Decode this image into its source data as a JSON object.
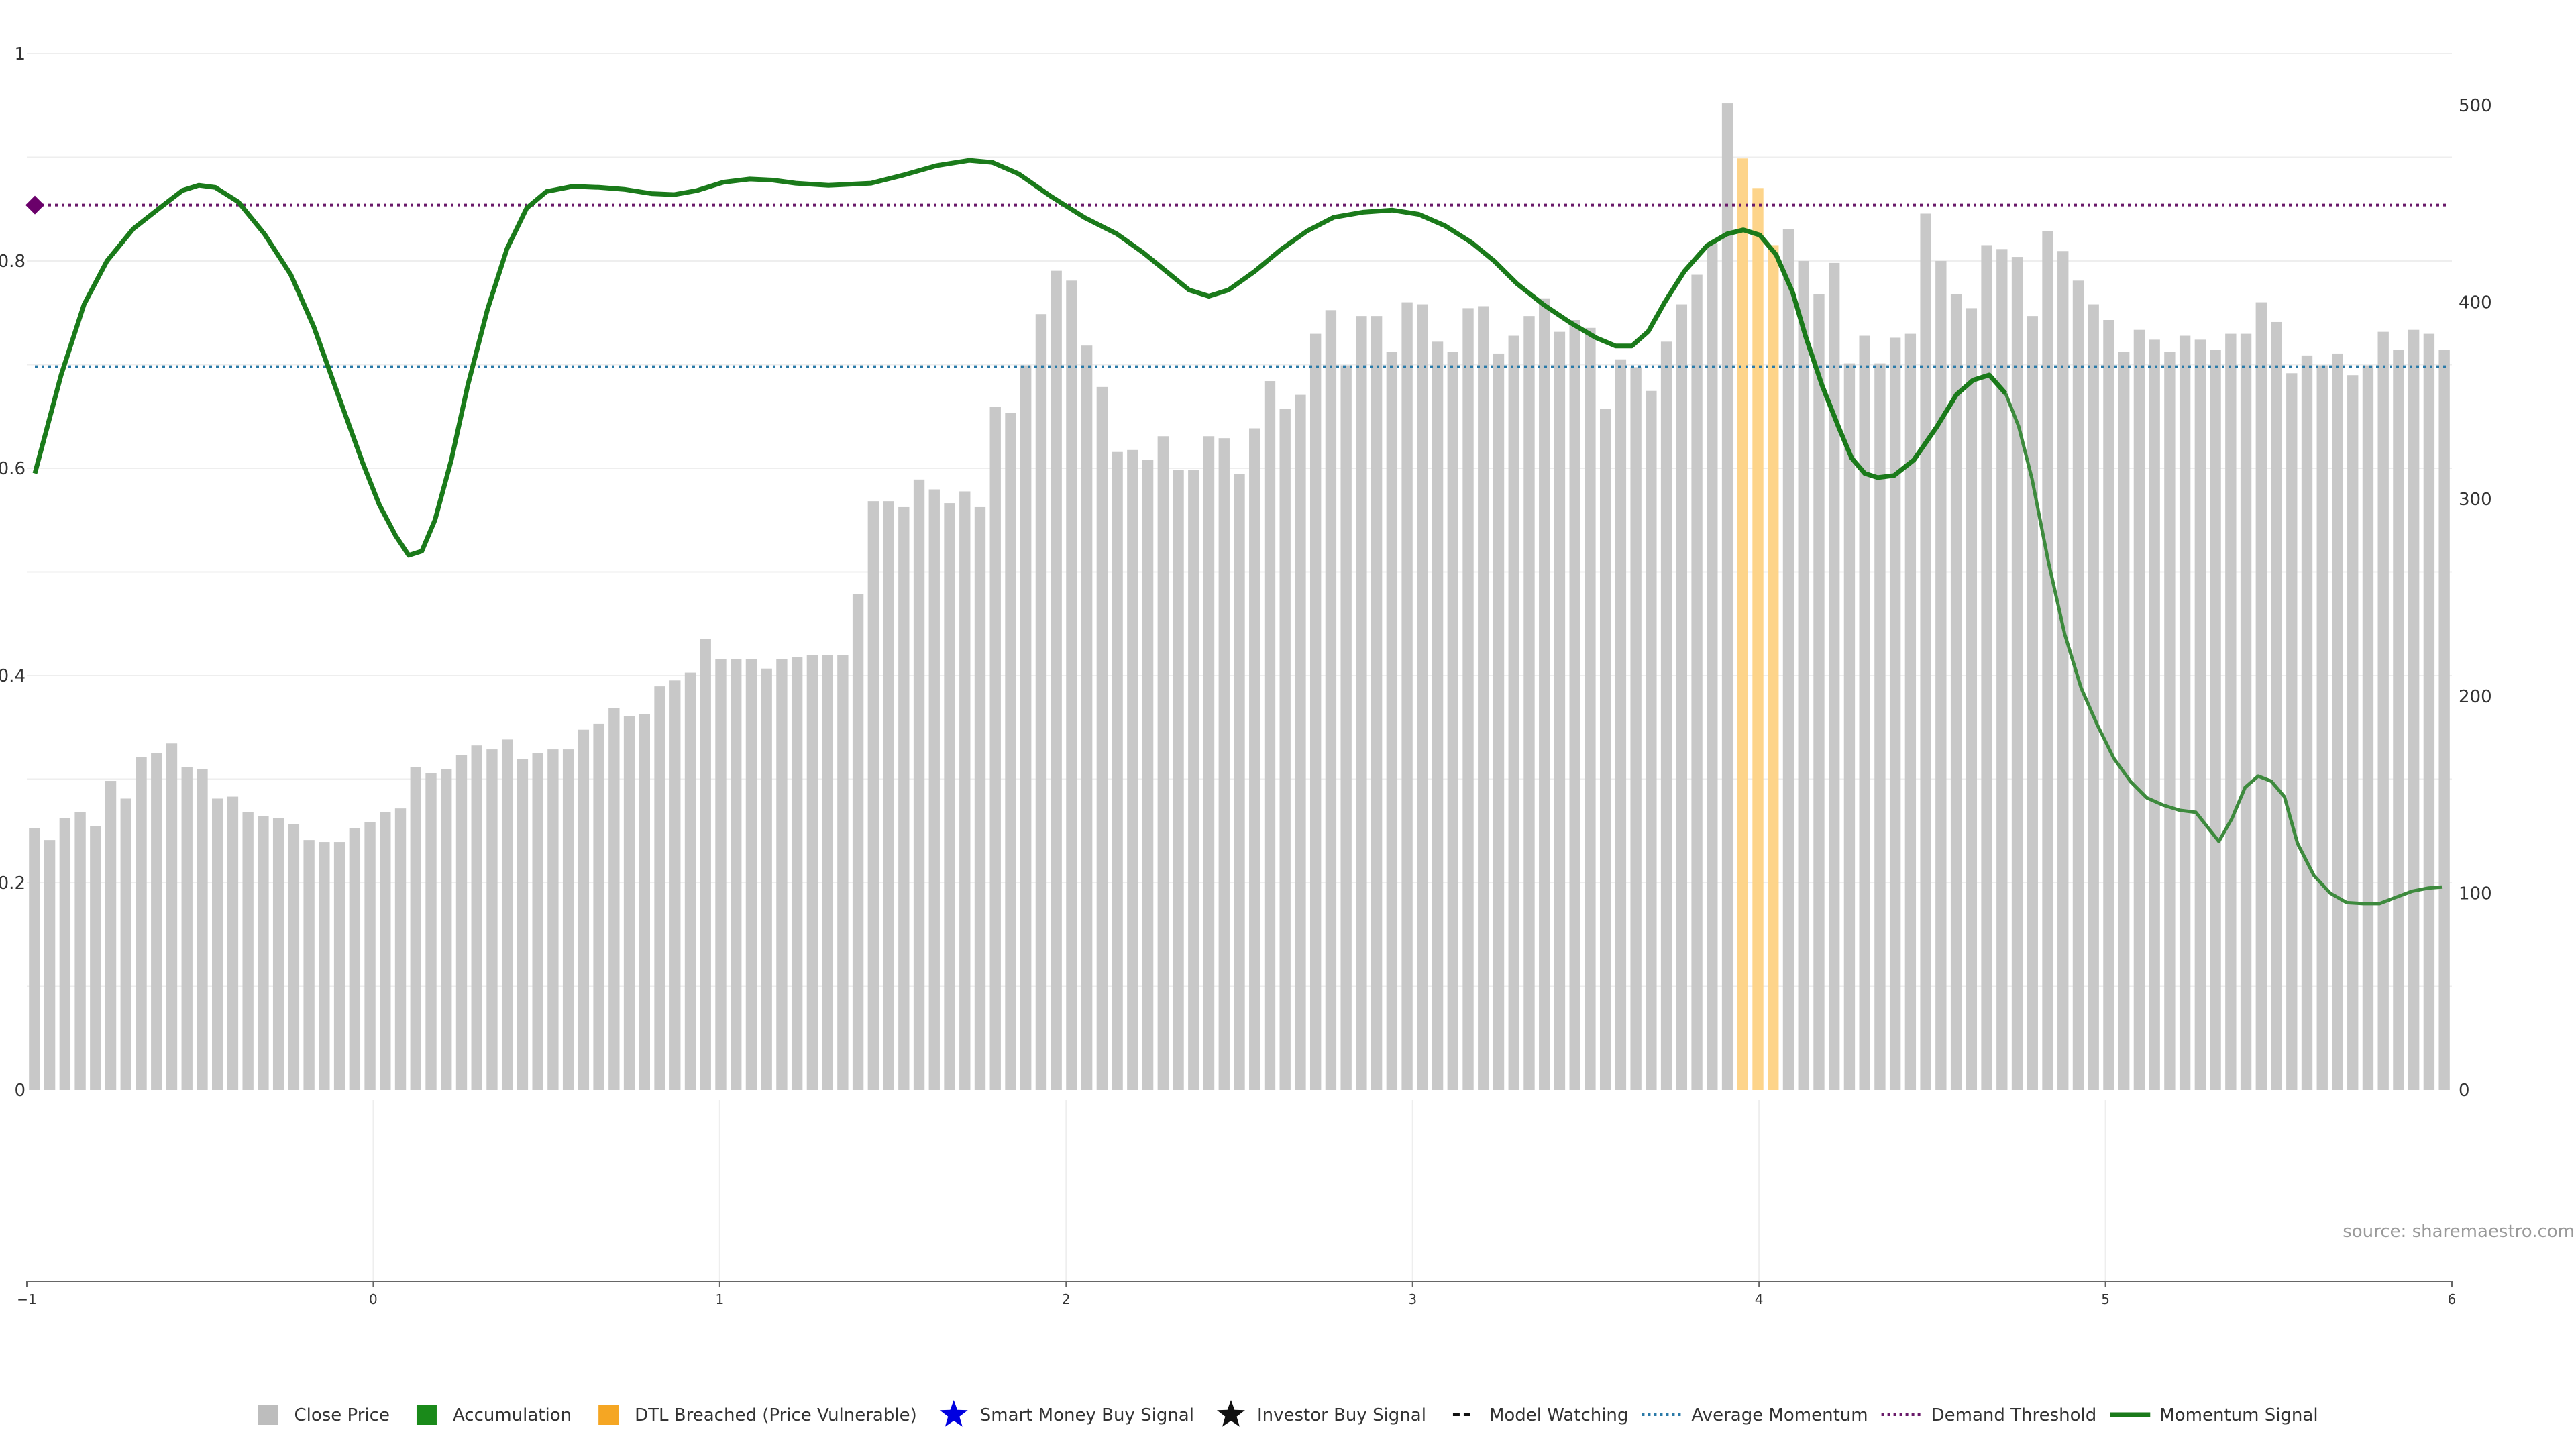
{
  "chart_data": {
    "type": "bar",
    "left_axis": {
      "ticks": [
        "0",
        "0.2",
        "0.4",
        "0.6",
        "0.8",
        "1"
      ],
      "ylim": [
        0,
        1
      ]
    },
    "right_axis": {
      "ticks": [
        "0",
        "100",
        "200",
        "300",
        "400",
        "500"
      ],
      "ylim": [
        0,
        500
      ]
    },
    "x_axis": {
      "ticks": [
        "−1",
        "0",
        "1",
        "2",
        "3",
        "4",
        "5",
        "6"
      ],
      "xlim": [
        -1,
        6
      ]
    },
    "grid": "horizontal",
    "source": "source: sharemaestro.com",
    "legend_position": "bottom-center",
    "legend": [
      {
        "key": "close",
        "label": "Close Price",
        "color": "#bdbdbd",
        "symbol": "square"
      },
      {
        "key": "accum",
        "label": "Accumulation",
        "color": "#1a8a1a",
        "symbol": "square"
      },
      {
        "key": "dtl",
        "label": "DTL Breached (Price Vulnerable)",
        "color": "#f5a623",
        "symbol": "square"
      },
      {
        "key": "smart",
        "label": "Smart Money Buy Signal",
        "color": "#0000e0",
        "symbol": "star"
      },
      {
        "key": "investor",
        "label": "Investor Buy Signal",
        "color": "#111111",
        "symbol": "star"
      },
      {
        "key": "watch",
        "label": "Model Watching",
        "color": "#111111",
        "symbol": "dash"
      },
      {
        "key": "avg",
        "label": "Average Momentum",
        "color": "#2a7aa8",
        "symbol": "dot"
      },
      {
        "key": "demand",
        "label": "Demand Threshold",
        "color": "#6a1a6a",
        "symbol": "dot"
      },
      {
        "key": "momentum",
        "label": "Momentum Signal",
        "color": "#1a7a1a",
        "symbol": "line"
      }
    ],
    "close_price": [
      133,
      127,
      138,
      141,
      134,
      157,
      148,
      169,
      171,
      176,
      164,
      163,
      148,
      149,
      141,
      139,
      138,
      135,
      127,
      126,
      126,
      133,
      136,
      141,
      143,
      164,
      161,
      163,
      170,
      175,
      173,
      178,
      168,
      171,
      173,
      173,
      183,
      186,
      194,
      190,
      191,
      205,
      208,
      212,
      229,
      219,
      219,
      219,
      214,
      219,
      220,
      221,
      221,
      221,
      252,
      299,
      299,
      296,
      310,
      305,
      298,
      304,
      296,
      347,
      344,
      368,
      394,
      416,
      411,
      378,
      357,
      324,
      325,
      320,
      332,
      315,
      315,
      332,
      331,
      313,
      336,
      360,
      346,
      353,
      384,
      396,
      368,
      393,
      393,
      375,
      400,
      399,
      380,
      375,
      397,
      398,
      374,
      383,
      393,
      402,
      385,
      391,
      387,
      346,
      371,
      367,
      355,
      380,
      399,
      414,
      430,
      501,
      473,
      458,
      429,
      437,
      421,
      404,
      420,
      369,
      383,
      369,
      382,
      384,
      445,
      421,
      404,
      397,
      429,
      427,
      423,
      393,
      436,
      426,
      411,
      399,
      391,
      375,
      386,
      381,
      375,
      383,
      381,
      376,
      384,
      384,
      400,
      390,
      364,
      373,
      368,
      374,
      363,
      368,
      385,
      376,
      386,
      384,
      376
    ],
    "dtl_breached_indices": [
      112,
      113,
      114
    ],
    "momentum_signal": [
      [
        -1.0,
        0.595
      ],
      [
        -0.92,
        0.69
      ],
      [
        -0.85,
        0.758
      ],
      [
        -0.78,
        0.8
      ],
      [
        -0.7,
        0.831
      ],
      [
        -0.62,
        0.851
      ],
      [
        -0.55,
        0.868
      ],
      [
        -0.5,
        0.873
      ],
      [
        -0.45,
        0.871
      ],
      [
        -0.38,
        0.857
      ],
      [
        -0.3,
        0.826
      ],
      [
        -0.22,
        0.787
      ],
      [
        -0.15,
        0.737
      ],
      [
        -0.08,
        0.675
      ],
      [
        0.0,
        0.605
      ],
      [
        0.05,
        0.565
      ],
      [
        0.1,
        0.535
      ],
      [
        0.14,
        0.516
      ],
      [
        0.18,
        0.52
      ],
      [
        0.22,
        0.55
      ],
      [
        0.27,
        0.608
      ],
      [
        0.32,
        0.68
      ],
      [
        0.38,
        0.753
      ],
      [
        0.44,
        0.812
      ],
      [
        0.5,
        0.851
      ],
      [
        0.56,
        0.867
      ],
      [
        0.64,
        0.872
      ],
      [
        0.72,
        0.871
      ],
      [
        0.8,
        0.869
      ],
      [
        0.88,
        0.865
      ],
      [
        0.95,
        0.864
      ],
      [
        1.02,
        0.868
      ],
      [
        1.1,
        0.876
      ],
      [
        1.18,
        0.879
      ],
      [
        1.25,
        0.878
      ],
      [
        1.32,
        0.875
      ],
      [
        1.42,
        0.873
      ],
      [
        1.55,
        0.875
      ],
      [
        1.65,
        0.883
      ],
      [
        1.75,
        0.892
      ],
      [
        1.85,
        0.897
      ],
      [
        1.92,
        0.895
      ],
      [
        2.0,
        0.884
      ],
      [
        2.1,
        0.862
      ],
      [
        2.2,
        0.842
      ],
      [
        2.3,
        0.826
      ],
      [
        2.38,
        0.808
      ],
      [
        2.45,
        0.79
      ],
      [
        2.52,
        0.772
      ],
      [
        2.58,
        0.766
      ],
      [
        2.64,
        0.772
      ],
      [
        2.72,
        0.79
      ],
      [
        2.8,
        0.811
      ],
      [
        2.88,
        0.829
      ],
      [
        2.96,
        0.842
      ],
      [
        3.05,
        0.847
      ],
      [
        3.14,
        0.849
      ],
      [
        3.22,
        0.845
      ],
      [
        3.3,
        0.834
      ],
      [
        3.38,
        0.818
      ],
      [
        3.45,
        0.8
      ],
      [
        3.52,
        0.778
      ],
      [
        3.6,
        0.758
      ],
      [
        3.68,
        0.741
      ],
      [
        3.76,
        0.726
      ],
      [
        3.82,
        0.718
      ],
      [
        3.87,
        0.718
      ],
      [
        3.92,
        0.732
      ],
      [
        3.97,
        0.76
      ],
      [
        4.03,
        0.79
      ],
      [
        4.1,
        0.815
      ],
      [
        4.16,
        0.826
      ],
      [
        4.21,
        0.83
      ],
      [
        4.26,
        0.825
      ],
      [
        4.31,
        0.806
      ],
      [
        4.36,
        0.77
      ],
      [
        4.4,
        0.727
      ],
      [
        4.45,
        0.68
      ],
      [
        4.5,
        0.64
      ],
      [
        4.54,
        0.61
      ],
      [
        4.58,
        0.595
      ],
      [
        4.62,
        0.591
      ],
      [
        4.67,
        0.593
      ],
      [
        4.73,
        0.608
      ],
      [
        4.8,
        0.64
      ],
      [
        4.86,
        0.671
      ],
      [
        4.91,
        0.685
      ],
      [
        4.96,
        0.69
      ],
      [
        5.01,
        0.672
      ],
      [
        5.05,
        0.64
      ],
      [
        5.09,
        0.59
      ],
      [
        5.14,
        0.51
      ],
      [
        5.19,
        0.44
      ],
      [
        5.24,
        0.388
      ],
      [
        5.29,
        0.352
      ],
      [
        5.34,
        0.32
      ],
      [
        5.39,
        0.298
      ],
      [
        5.44,
        0.282
      ],
      [
        5.49,
        0.275
      ],
      [
        5.54,
        0.27
      ],
      [
        5.59,
        0.268
      ],
      [
        5.63,
        0.252
      ],
      [
        5.66,
        0.24
      ],
      [
        5.7,
        0.262
      ],
      [
        5.74,
        0.292
      ],
      [
        5.78,
        0.303
      ],
      [
        5.82,
        0.298
      ],
      [
        5.86,
        0.283
      ],
      [
        5.9,
        0.238
      ],
      [
        5.95,
        0.207
      ],
      [
        6.0,
        0.19
      ],
      [
        6.05,
        0.181
      ],
      [
        6.1,
        0.18
      ],
      [
        6.15,
        0.18
      ],
      [
        6.2,
        0.186
      ],
      [
        6.25,
        0.192
      ],
      [
        6.3,
        0.195
      ],
      [
        6.34,
        0.196
      ]
    ],
    "average_momentum": 0.698,
    "demand_threshold": 0.854,
    "demand_marker": {
      "x": -1.0,
      "y": 0.854
    }
  }
}
